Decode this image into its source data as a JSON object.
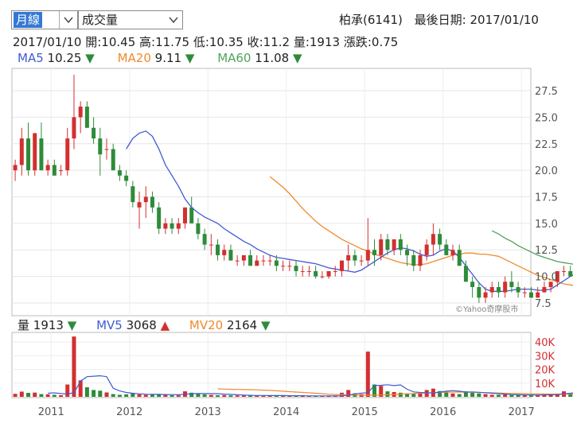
{
  "controls": {
    "period_value": "月線",
    "indicator_value": "成交量"
  },
  "stock": {
    "name_code": "柏承(6141)",
    "last_date_label": "最後日期:",
    "last_date": "2017/01/10"
  },
  "quote": {
    "date": "2017/01/10",
    "open": "開:10.45",
    "high": "高:11.75",
    "low": "低:10.35",
    "close": "收:11.2",
    "volume": "量:1913",
    "change": "漲跌:0.75"
  },
  "ma_legend": [
    {
      "name": "MA5",
      "value": "10.25",
      "dir": "▼",
      "color": "#3f5bd6"
    },
    {
      "name": "MA20",
      "value": "9.11",
      "dir": "▼",
      "color": "#f08a2c"
    },
    {
      "name": "MA60",
      "value": "11.08",
      "dir": "▼",
      "color": "#4fa35b"
    }
  ],
  "vol_legend": [
    {
      "name": "量",
      "value": "1913",
      "dir": "▼",
      "color": "#222222",
      "dir_color": "#2e8b3a"
    },
    {
      "name": "MV5",
      "value": "3068",
      "dir": "▲",
      "color": "#3f5bd6",
      "dir_color": "#d32f2f"
    },
    {
      "name": "MV20",
      "value": "2164",
      "dir": "▼",
      "color": "#f08a2c",
      "dir_color": "#2e8b3a"
    }
  ],
  "watermark": "©Yahoo奇摩股市",
  "colors": {
    "up": "#d32f2f",
    "down": "#2e8b3a",
    "ma5": "#3f5bd6",
    "ma20": "#f08a2c",
    "ma60": "#4fa35b"
  },
  "chart_data": {
    "type": "candlestick",
    "price_ylim": [
      6.3,
      29.6
    ],
    "price_ticks": [
      "27.5",
      "25.0",
      "22.5",
      "20.0",
      "17.5",
      "15.0",
      "12.5",
      "10.0",
      "7.5"
    ],
    "volume_ylim": [
      0,
      47000
    ],
    "volume_ticks": [
      "40K",
      "30K",
      "20K",
      "10K"
    ],
    "x_ticks": [
      "2011",
      "2012",
      "2013",
      "2014",
      "2015",
      "2016",
      "2017"
    ],
    "start_year": 2010.5,
    "candles": [
      [
        20.0,
        21.0,
        19.0,
        20.5,
        2200
      ],
      [
        20.5,
        24.0,
        19.5,
        23.0,
        3800
      ],
      [
        23.0,
        24.5,
        19.5,
        20.0,
        2900
      ],
      [
        20.0,
        23.5,
        19.5,
        23.5,
        3100
      ],
      [
        23.0,
        24.5,
        20.0,
        20.0,
        2000
      ],
      [
        20.0,
        21.0,
        19.5,
        20.5,
        1800
      ],
      [
        20.5,
        21.0,
        19.5,
        19.5,
        1500
      ],
      [
        20.0,
        20.5,
        19.5,
        20.0,
        1200
      ],
      [
        20.0,
        24.0,
        19.5,
        23.0,
        9000
      ],
      [
        23.0,
        29.0,
        22.0,
        25.0,
        44000
      ],
      [
        25.0,
        26.5,
        23.5,
        26.0,
        12000
      ],
      [
        26.0,
        26.5,
        24.0,
        24.0,
        7000
      ],
      [
        24.0,
        25.0,
        22.5,
        23.0,
        5000
      ],
      [
        23.0,
        24.0,
        19.5,
        21.5,
        4500
      ],
      [
        22.0,
        23.0,
        21.0,
        22.0,
        3200
      ],
      [
        22.0,
        22.5,
        20.0,
        20.0,
        2000
      ],
      [
        20.0,
        20.5,
        19.0,
        19.5,
        1500
      ],
      [
        19.5,
        20.0,
        18.5,
        19.0,
        1800
      ],
      [
        18.5,
        19.0,
        16.5,
        17.0,
        2500
      ],
      [
        16.5,
        18.0,
        14.5,
        17.0,
        1800
      ],
      [
        17.0,
        18.5,
        15.5,
        17.5,
        1500
      ],
      [
        17.5,
        18.0,
        16.0,
        16.5,
        1600
      ],
      [
        16.5,
        17.0,
        14.0,
        14.5,
        1700
      ],
      [
        14.5,
        15.5,
        14.0,
        15.0,
        1400
      ],
      [
        15.0,
        15.5,
        14.0,
        14.5,
        1200
      ],
      [
        14.5,
        15.5,
        14.0,
        15.0,
        1100
      ],
      [
        15.0,
        16.5,
        14.5,
        16.5,
        4000
      ],
      [
        16.5,
        17.5,
        15.0,
        15.0,
        3000
      ],
      [
        15.0,
        15.5,
        13.5,
        14.0,
        2200
      ],
      [
        14.0,
        14.5,
        12.5,
        13.0,
        1800
      ],
      [
        13.0,
        14.0,
        12.0,
        13.0,
        1400
      ],
      [
        13.0,
        13.5,
        11.5,
        12.0,
        1200
      ],
      [
        12.0,
        13.0,
        11.5,
        12.5,
        1300
      ],
      [
        12.5,
        13.0,
        11.5,
        11.5,
        1100
      ],
      [
        11.5,
        12.0,
        11.0,
        11.5,
        1000
      ],
      [
        11.5,
        12.0,
        11.0,
        12.0,
        1000
      ],
      [
        12.0,
        12.5,
        11.0,
        11.0,
        900
      ],
      [
        11.0,
        12.0,
        11.0,
        11.5,
        1000
      ],
      [
        11.5,
        12.0,
        11.0,
        11.5,
        800
      ],
      [
        11.5,
        12.0,
        11.0,
        11.5,
        900
      ],
      [
        11.5,
        12.0,
        10.5,
        11.0,
        800
      ],
      [
        11.0,
        11.5,
        10.5,
        11.0,
        700
      ],
      [
        11.0,
        11.5,
        10.5,
        11.0,
        800
      ],
      [
        11.0,
        11.5,
        10.0,
        10.5,
        700
      ],
      [
        10.5,
        11.0,
        10.0,
        10.5,
        600
      ],
      [
        10.5,
        11.0,
        10.0,
        10.5,
        800
      ],
      [
        10.5,
        11.0,
        9.8,
        10.0,
        700
      ],
      [
        10.0,
        10.5,
        9.8,
        10.0,
        600
      ],
      [
        10.0,
        10.5,
        9.8,
        10.5,
        600
      ],
      [
        10.5,
        11.0,
        10.0,
        10.5,
        900
      ],
      [
        10.5,
        11.5,
        10.0,
        11.5,
        3000
      ],
      [
        11.5,
        13.0,
        10.5,
        12.0,
        5000
      ],
      [
        12.0,
        12.5,
        11.0,
        11.5,
        2500
      ],
      [
        11.5,
        12.0,
        11.0,
        11.5,
        2000
      ],
      [
        11.5,
        15.5,
        11.0,
        12.5,
        33000
      ],
      [
        12.5,
        13.5,
        11.0,
        12.0,
        9000
      ],
      [
        12.0,
        14.0,
        11.5,
        13.5,
        8000
      ],
      [
        13.5,
        14.0,
        12.0,
        12.5,
        4000
      ],
      [
        12.5,
        13.5,
        12.0,
        13.5,
        3500
      ],
      [
        13.5,
        14.0,
        12.0,
        12.5,
        3000
      ],
      [
        12.5,
        13.0,
        11.0,
        12.0,
        2500
      ],
      [
        12.0,
        12.5,
        10.5,
        11.0,
        2200
      ],
      [
        11.0,
        12.5,
        10.5,
        12.0,
        3200
      ],
      [
        12.0,
        13.5,
        11.5,
        13.0,
        5000
      ],
      [
        13.0,
        15.0,
        12.0,
        14.0,
        6000
      ],
      [
        14.0,
        14.5,
        12.5,
        13.0,
        4200
      ],
      [
        13.0,
        13.5,
        12.0,
        12.0,
        3300
      ],
      [
        12.0,
        13.0,
        11.5,
        12.5,
        2500
      ],
      [
        12.5,
        13.0,
        11.0,
        11.0,
        2000
      ],
      [
        11.0,
        11.5,
        9.5,
        9.5,
        4000
      ],
      [
        9.5,
        10.0,
        8.0,
        9.0,
        3000
      ],
      [
        9.0,
        9.5,
        7.5,
        8.0,
        2500
      ],
      [
        8.0,
        9.0,
        7.5,
        8.5,
        2000
      ],
      [
        8.5,
        9.5,
        8.0,
        9.0,
        1500
      ],
      [
        9.0,
        9.5,
        8.0,
        8.5,
        1500
      ],
      [
        8.5,
        10.0,
        8.0,
        9.5,
        1700
      ],
      [
        9.5,
        10.5,
        8.5,
        9.0,
        1400
      ],
      [
        9.0,
        9.5,
        8.0,
        8.5,
        1200
      ],
      [
        8.5,
        9.0,
        8.0,
        8.5,
        1100
      ],
      [
        8.5,
        9.0,
        8.0,
        8.0,
        1000
      ],
      [
        8.0,
        9.0,
        8.0,
        8.5,
        1200
      ],
      [
        8.5,
        9.5,
        8.5,
        9.0,
        1300
      ],
      [
        9.0,
        9.5,
        8.5,
        9.5,
        1300
      ],
      [
        9.5,
        10.5,
        9.0,
        10.5,
        2000
      ],
      [
        10.5,
        11.0,
        10.0,
        10.5,
        4000
      ],
      [
        10.5,
        11.0,
        10.0,
        10.0,
        2500
      ],
      [
        10.5,
        11.8,
        10.4,
        11.2,
        1913
      ]
    ],
    "ma5": [
      null,
      null,
      null,
      null,
      22.0,
      23.0,
      23.5,
      23.7,
      23.2,
      22.0,
      20.5,
      19.5,
      18.5,
      17.3,
      16.5,
      16.0,
      15.6,
      15.3,
      15.0,
      14.5,
      14.1,
      13.7,
      13.3,
      13.0,
      12.6,
      12.3,
      12.0,
      11.8,
      11.7,
      11.6,
      11.5,
      11.4,
      11.3,
      11.2,
      11.0,
      10.8,
      10.7,
      10.6,
      10.5,
      10.4,
      10.6,
      11.0,
      11.4,
      11.8,
      12.2,
      12.5,
      12.7,
      12.6,
      12.4,
      12.1,
      11.9,
      12.0,
      12.4,
      12.6,
      12.4,
      11.8,
      11.0,
      10.2,
      9.4,
      8.8,
      8.6,
      8.6,
      8.6,
      8.7,
      8.8,
      8.8,
      8.8,
      8.7,
      8.7,
      8.8,
      9.2,
      9.6,
      10.0,
      10.3
    ],
    "ma20": [
      null,
      null,
      null,
      null,
      null,
      null,
      null,
      null,
      null,
      null,
      null,
      null,
      null,
      null,
      null,
      null,
      null,
      null,
      19.4,
      18.9,
      18.4,
      17.8,
      17.1,
      16.4,
      15.8,
      15.2,
      14.7,
      14.3,
      13.9,
      13.5,
      13.2,
      12.9,
      12.6,
      12.4,
      12.1,
      11.9,
      11.7,
      11.5,
      11.3,
      11.2,
      11.1,
      11.1,
      11.2,
      11.4,
      11.6,
      11.8,
      12.0,
      12.1,
      12.2,
      12.2,
      12.1,
      12.1,
      12.0,
      11.9,
      11.6,
      11.3,
      11.0,
      10.7,
      10.4,
      10.1,
      9.9,
      9.7,
      9.5,
      9.3,
      9.2,
      9.1
    ],
    "ma60": [
      null,
      null,
      null,
      null,
      null,
      null,
      null,
      null,
      null,
      null,
      null,
      null,
      null,
      null,
      null,
      null,
      null,
      null,
      null,
      null,
      null,
      null,
      null,
      null,
      null,
      null,
      null,
      null,
      null,
      null,
      null,
      null,
      null,
      null,
      null,
      null,
      null,
      null,
      null,
      null,
      null,
      null,
      null,
      null,
      null,
      null,
      null,
      null,
      null,
      null,
      null,
      null,
      null,
      null,
      null,
      null,
      null,
      null,
      14.3,
      14.0,
      13.6,
      13.3,
      12.9,
      12.6,
      12.3,
      12.0,
      11.8,
      11.6,
      11.4,
      11.3,
      11.2,
      11.1
    ],
    "mv5": [
      null,
      null,
      null,
      null,
      2600,
      2900,
      2400,
      2100,
      3000,
      11500,
      14700,
      15000,
      15400,
      14700,
      6300,
      4300,
      3200,
      2600,
      2200,
      1900,
      1800,
      1800,
      1700,
      1600,
      1500,
      1900,
      2300,
      2400,
      2400,
      2300,
      2300,
      2000,
      1800,
      1500,
      1300,
      1100,
      1000,
      1000,
      900,
      900,
      900,
      800,
      800,
      800,
      700,
      700,
      700,
      700,
      700,
      700,
      1200,
      2200,
      2700,
      3000,
      8300,
      8400,
      8800,
      8200,
      8700,
      5500,
      3600,
      3200,
      2900,
      2900,
      3400,
      4100,
      4500,
      4100,
      3500,
      3600,
      3300,
      3000,
      2600,
      2300,
      2000,
      1700,
      1500,
      1400,
      1400,
      1300,
      1400,
      1500,
      1700,
      2200,
      2600,
      3068
    ],
    "mv20": [
      null,
      null,
      null,
      null,
      null,
      null,
      null,
      null,
      null,
      null,
      null,
      null,
      null,
      null,
      null,
      null,
      null,
      null,
      5800,
      5600,
      5500,
      5400,
      5300,
      5200,
      5100,
      4900,
      4700,
      4400,
      4100,
      3800,
      3500,
      3200,
      2900,
      2600,
      2300,
      1900,
      1700,
      1500,
      1400,
      1300,
      1200,
      1200,
      1200,
      1300,
      1500,
      1700,
      2000,
      2200,
      2400,
      2600,
      2800,
      3000,
      3200,
      3400,
      3500,
      3500,
      3400,
      3300,
      3200,
      3100,
      3000,
      2800,
      2600,
      2500,
      2400,
      2300,
      2200,
      2100,
      2100,
      2000,
      2000,
      2000,
      2100,
      2164
    ]
  }
}
